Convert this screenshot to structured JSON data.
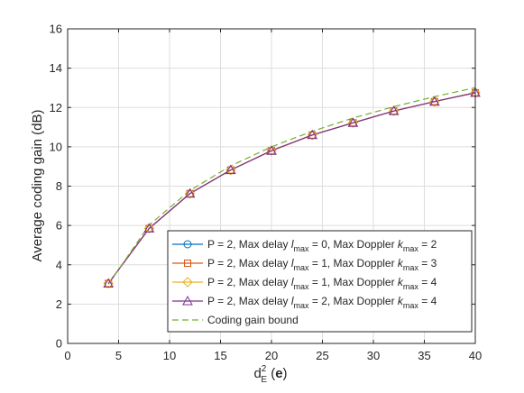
{
  "chart_data": {
    "type": "line",
    "title": "",
    "xlabel": {
      "base": "d",
      "sup": "2",
      "sub": "E",
      "arg_open": " (",
      "arg": "e",
      "arg_close": ")"
    },
    "ylabel": "Average coding gain (dB)",
    "xlim": [
      0,
      40
    ],
    "ylim": [
      0,
      16
    ],
    "xticks": [
      0,
      5,
      10,
      15,
      20,
      25,
      30,
      35,
      40
    ],
    "yticks": [
      0,
      2,
      4,
      6,
      8,
      10,
      12,
      14,
      16
    ],
    "grid": true,
    "legend_position": "bottom-right",
    "x": [
      4,
      8,
      12,
      16,
      20,
      24,
      28,
      32,
      36,
      40
    ],
    "series": [
      {
        "marker": "circle",
        "color": "#0072BD",
        "dash": "solid",
        "legend": [
          "P = 2, Max delay ",
          "l",
          "max",
          " = 0, Max Doppler ",
          "k",
          "max",
          " = 2"
        ],
        "values": [
          3.05,
          5.85,
          7.62,
          8.82,
          9.8,
          10.6,
          11.22,
          11.82,
          12.3,
          12.75
        ]
      },
      {
        "marker": "square",
        "color": "#D95319",
        "dash": "solid",
        "legend": [
          "P = 2, Max delay ",
          "l",
          "max",
          " = 1, Max Doppler ",
          "k",
          "max",
          " = 3"
        ],
        "values": [
          3.05,
          5.85,
          7.62,
          8.82,
          9.8,
          10.6,
          11.22,
          11.82,
          12.3,
          12.75
        ]
      },
      {
        "marker": "diamond",
        "color": "#EDB120",
        "dash": "solid",
        "legend": [
          "P = 2, Max delay ",
          "l",
          "max",
          " = 1, Max Doppler ",
          "k",
          "max",
          " = 4"
        ],
        "values": [
          3.05,
          5.85,
          7.62,
          8.82,
          9.8,
          10.6,
          11.22,
          11.82,
          12.3,
          12.75
        ]
      },
      {
        "marker": "triangle",
        "color": "#7E2F8E",
        "dash": "solid",
        "legend": [
          "P = 2, Max delay ",
          "l",
          "max",
          " = 2, Max Doppler ",
          "k",
          "max",
          " = 4"
        ],
        "values": [
          3.05,
          5.85,
          7.62,
          8.82,
          9.8,
          10.6,
          11.22,
          11.82,
          12.3,
          12.75
        ]
      },
      {
        "marker": "none",
        "color": "#77AC30",
        "dash": "dashed",
        "legend": [
          "Coding gain bound"
        ],
        "values": [
          3.01,
          6.02,
          7.78,
          9.03,
          10.0,
          10.79,
          11.46,
          12.04,
          12.55,
          13.01
        ]
      }
    ]
  }
}
